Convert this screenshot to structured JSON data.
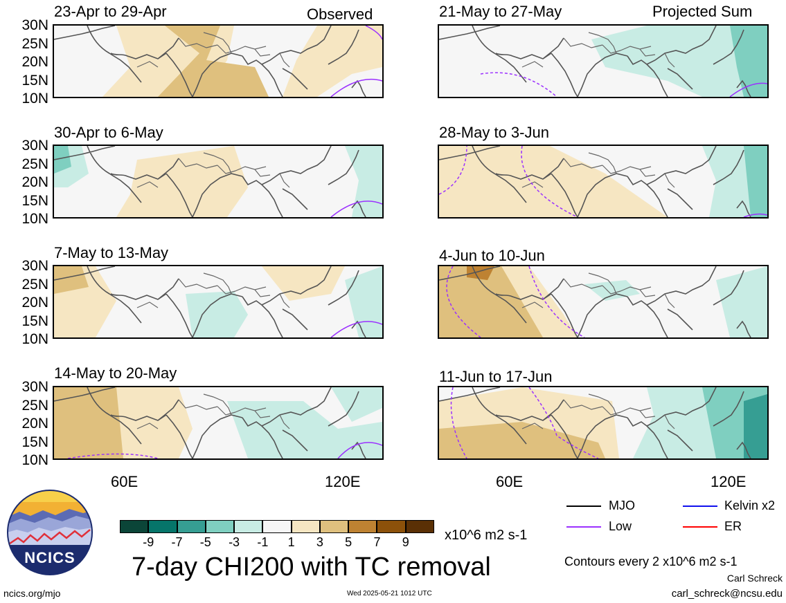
{
  "colors": {
    "scale": [
      "#0b4538",
      "#06756a",
      "#369e93",
      "#7fcfc0",
      "#c8ece4",
      "#f6f6f6",
      "#f6e6c2",
      "#dfc07e",
      "#be8232",
      "#8c510a",
      "#5a3005"
    ],
    "mjo": "#000000",
    "kelvin": "#1010ee",
    "low": "#9b30ff",
    "er": "#ff0000"
  },
  "panels": [
    {
      "title": "23-Apr to 29-Apr",
      "tag": "Observed"
    },
    {
      "title": "21-May to 27-May",
      "tag": "Projected Sum"
    },
    {
      "title": "30-Apr to 6-May",
      "tag": ""
    },
    {
      "title": "28-May to 3-Jun",
      "tag": ""
    },
    {
      "title": "7-May to 13-May",
      "tag": ""
    },
    {
      "title": "4-Jun to 10-Jun",
      "tag": ""
    },
    {
      "title": "14-May to 20-May",
      "tag": ""
    },
    {
      "title": "11-Jun to 17-Jun",
      "tag": ""
    }
  ],
  "lat_labels": [
    "30N",
    "25N",
    "20N",
    "15N",
    "10N"
  ],
  "lon_labels": [
    "60E",
    "120E"
  ],
  "colorbar": {
    "ticks": [
      "-9",
      "-7",
      "-5",
      "-3",
      "-1",
      "1",
      "3",
      "5",
      "7",
      "9"
    ],
    "units": "x10^6 m2 s-1"
  },
  "main_title": "7-day CHI200 with TC removal",
  "legend": {
    "mjo": "MJO",
    "kelvin": "Kelvin x2",
    "low": "Low",
    "er": "ER"
  },
  "contours_note": "Contours every 2 x10^6 m2 s-1",
  "author": "Carl Schreck",
  "email": "carl_schreck@ncsu.edu",
  "url": "ncics.org/mjo",
  "timestamp": "Wed 2025-05-21 1012 UTC",
  "logo_text": "NCICS"
}
